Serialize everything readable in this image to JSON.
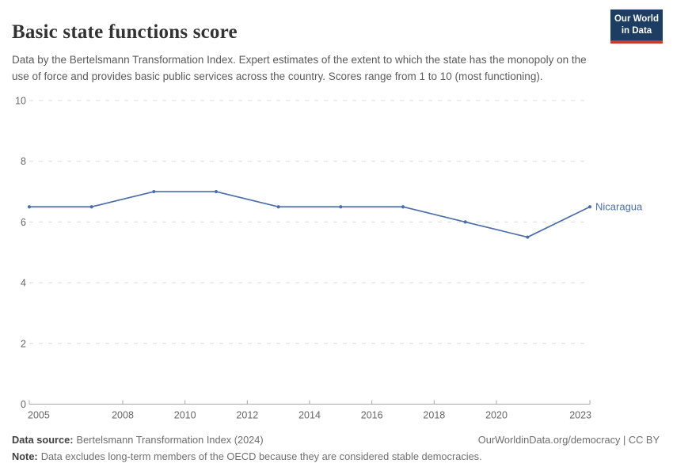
{
  "header": {
    "title": "Basic state functions score",
    "logo": {
      "line1": "Our World",
      "line2": "in Data"
    }
  },
  "subtitle": "Data by the Bertelsmann Transformation Index. Expert estimates of the extent to which the state has the monopoly on the use of force and provides basic public services across the country. Scores range from 1 to 10 (most functioning).",
  "chart_data": {
    "type": "line",
    "title": "Basic state functions score",
    "series": [
      {
        "name": "Nicaragua",
        "color": "#4c6ea9",
        "x": [
          2005,
          2007,
          2009,
          2011,
          2013,
          2015,
          2017,
          2019,
          2021,
          2023
        ],
        "values": [
          6.5,
          6.5,
          7,
          7,
          6.5,
          6.5,
          6.5,
          6,
          5.5,
          6.5
        ]
      }
    ],
    "x_ticks": [
      2005,
      2008,
      2010,
      2012,
      2014,
      2016,
      2018,
      2020,
      2023
    ],
    "y_ticks": [
      0,
      2,
      4,
      6,
      8,
      10
    ],
    "xlim": [
      2005,
      2023
    ],
    "ylim": [
      0,
      10
    ],
    "grid": "horizontal-dashed",
    "legend_position": "line-end-label"
  },
  "footer": {
    "source_label": "Data source:",
    "source_text": "Bertelsmann Transformation Index (2024)",
    "link_text": "OurWorldinData.org/democracy | CC BY",
    "note_label": "Note:",
    "note_text": "Data excludes long-term members of the OECD because they are considered stable democracies."
  },
  "colors": {
    "line": "#4c6ea9",
    "logo_bg": "#1d3d63",
    "logo_red": "#cc392d",
    "grid": "#dcdcdc",
    "axis": "#a8a8a8",
    "tick_label": "#666666",
    "text_gray": "#5b5b5b"
  }
}
